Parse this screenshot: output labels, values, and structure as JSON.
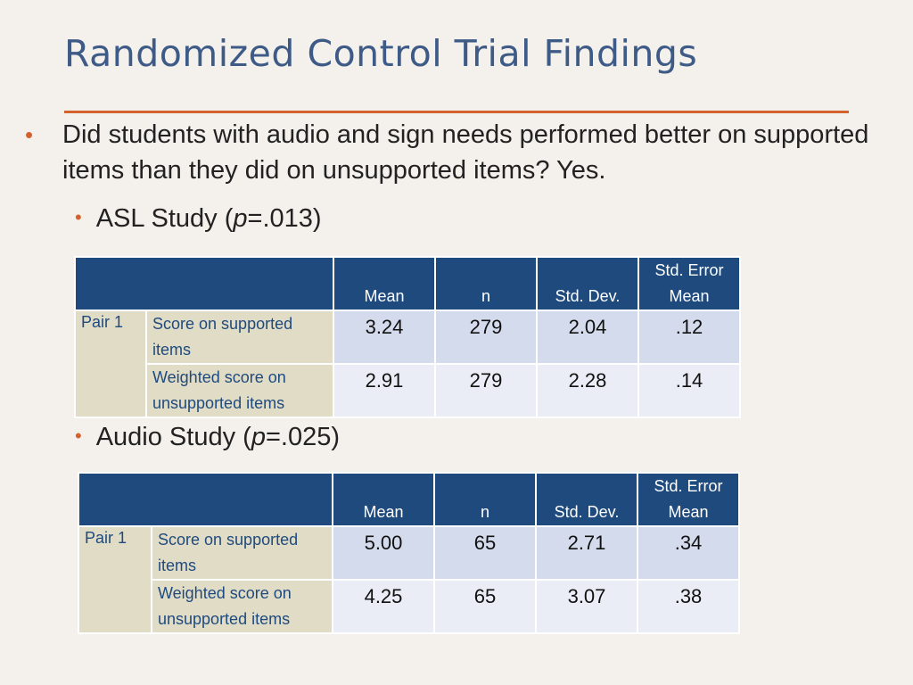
{
  "slide": {
    "title": "Randomized Control Trial Findings",
    "main_bullet": "Did students with audio and sign needs performed better on supported items than they did on unsupported items? Yes."
  },
  "studies": [
    {
      "label_prefix": "ASL Study (",
      "p_symbol": "p",
      "p_value": "=.013)",
      "table": {
        "headers": [
          "",
          "Mean",
          "n",
          "Std. Dev.",
          "Std. Error Mean"
        ],
        "pair_label": "Pair 1",
        "rows": [
          {
            "label": "Score on supported items",
            "mean": "3.24",
            "n": "279",
            "sd": "2.04",
            "se": ".12"
          },
          {
            "label": "Weighted score on unsupported items",
            "mean": "2.91",
            "n": "279",
            "sd": "2.28",
            "se": ".14"
          }
        ]
      }
    },
    {
      "label_prefix": "Audio Study (",
      "p_symbol": "p",
      "p_value": "=.025)",
      "table": {
        "headers": [
          "",
          "Mean",
          "n",
          "Std. Dev.",
          "Std. Error Mean"
        ],
        "pair_label": "Pair 1",
        "rows": [
          {
            "label": "Score on supported items",
            "mean": "5.00",
            "n": "65",
            "sd": "2.71",
            "se": ".34"
          },
          {
            "label": "Weighted score on unsupported items",
            "mean": "4.25",
            "n": "65",
            "sd": "3.07",
            "se": ".38"
          }
        ]
      }
    }
  ],
  "colors": {
    "title": "#3e5a86",
    "accent": "#d4622f",
    "table_header": "#1f4a7e",
    "label_cell": "#e1dcc6",
    "row_light": "#d4dbec",
    "row_lighter": "#eaedf5"
  }
}
